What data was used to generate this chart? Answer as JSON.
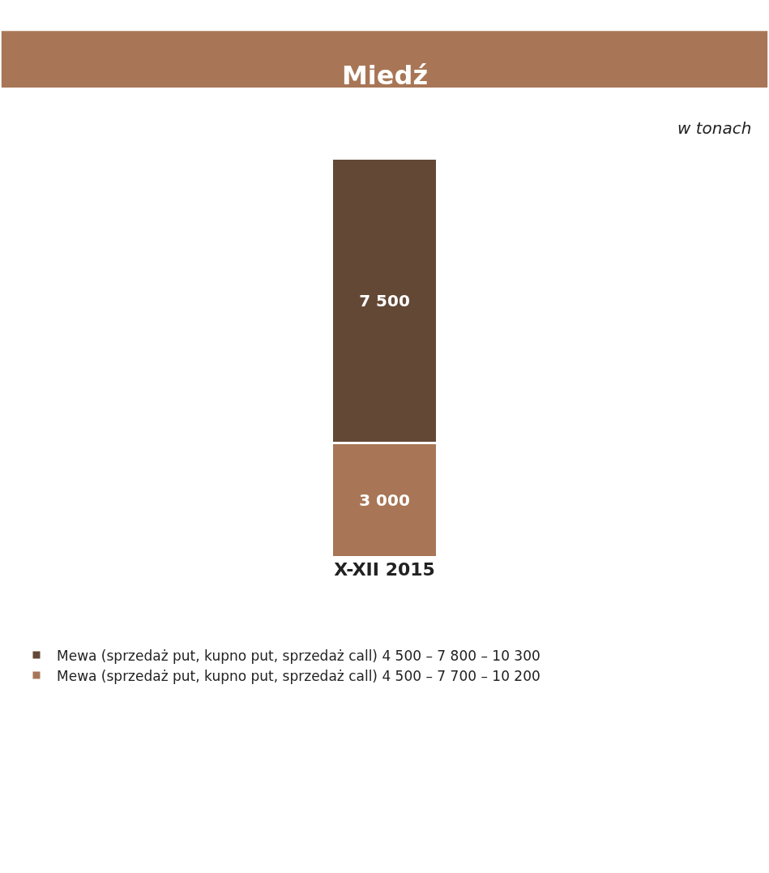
{
  "chart_data": {
    "type": "bar",
    "title": "Miedź",
    "subtitle": "w tonach",
    "categories": [
      "X-XII 2015"
    ],
    "stacked": true,
    "data_labels": true,
    "legend": "bottom",
    "series": [
      {
        "name": "Mewa (sprzedaż put, kupno put, sprzedaż call) 4 500 – 7 700 – 10 200",
        "color": "#a87656",
        "values": [
          3000
        ]
      },
      {
        "name": "Mewa (sprzedaż put, kupno put, sprzedaż call) 4 500 – 7 800 – 10 300",
        "color": "#634836",
        "values": [
          7500
        ]
      }
    ]
  }
}
